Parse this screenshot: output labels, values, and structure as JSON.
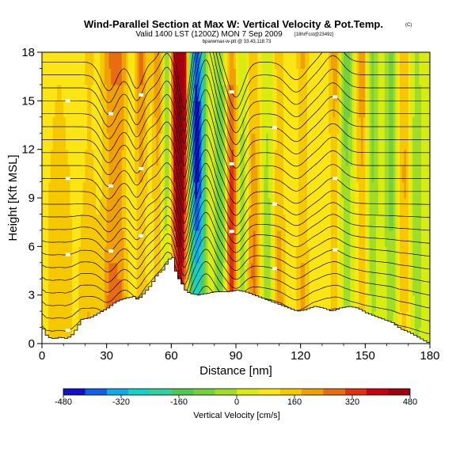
{
  "chart_data": {
    "type": "heatmap",
    "title": "Wind-Parallel Section at Max W: Vertical Velocity & Pot.Temp.",
    "title_mark": "(C)",
    "subtitle": "Valid 1400 LST (1200Z) MON 7 Sep 2009",
    "subtitle_note": "[18hrFcst@2349z]",
    "info_line": "bparwmax-w-ptt @ 33.43,118.73",
    "xlabel": "Distance [nm]",
    "ylabel": "Height [Kft MSL]",
    "xlim": [
      0,
      180
    ],
    "ylim": [
      0,
      18
    ],
    "xticks": [
      "0",
      "30",
      "60",
      "90",
      "120",
      "150",
      "180"
    ],
    "yticks": [
      "0",
      "3",
      "6",
      "9",
      "12",
      "15",
      "18"
    ],
    "colorbar": {
      "title": "Vertical Velocity [cm/s]",
      "range": [
        -480,
        480
      ],
      "tick_labels": [
        "-480",
        "-320",
        "-160",
        "0",
        "160",
        "320",
        "480"
      ],
      "colors": [
        "#1010c8",
        "#1060e6",
        "#10aae6",
        "#14d2c8",
        "#30d2a0",
        "#50c850",
        "#74d03c",
        "#a0dc28",
        "#d8ec10",
        "#fbe514",
        "#f5c800",
        "#f0a000",
        "#e86c10",
        "#e03010",
        "#c80010",
        "#a00010"
      ]
    },
    "terrain_nm_kft": [
      [
        0,
        0.9
      ],
      [
        2,
        0.4
      ],
      [
        5,
        0.3
      ],
      [
        8,
        0.4
      ],
      [
        11,
        0.3
      ],
      [
        14,
        0.6
      ],
      [
        18,
        1.5
      ],
      [
        22,
        1.6
      ],
      [
        26,
        1.9
      ],
      [
        30,
        2.2
      ],
      [
        34,
        2.6
      ],
      [
        38,
        2.8
      ],
      [
        42,
        2.9
      ],
      [
        44,
        2.7
      ],
      [
        46,
        3.0
      ],
      [
        48,
        3.3
      ],
      [
        50,
        3.6
      ],
      [
        53,
        4.3
      ],
      [
        56,
        4.6
      ],
      [
        58,
        5.2
      ],
      [
        60,
        5.3
      ],
      [
        62,
        4.2
      ],
      [
        64,
        3.8
      ],
      [
        66,
        3.3
      ],
      [
        68,
        3.1
      ],
      [
        72,
        3.0
      ],
      [
        76,
        3.1
      ],
      [
        80,
        3.2
      ],
      [
        86,
        3.2
      ],
      [
        90,
        3.3
      ],
      [
        94,
        3.2
      ],
      [
        98,
        3.0
      ],
      [
        102,
        2.8
      ],
      [
        106,
        2.6
      ],
      [
        110,
        2.4
      ],
      [
        114,
        2.2
      ],
      [
        118,
        2.0
      ],
      [
        122,
        2.1
      ],
      [
        126,
        2.3
      ],
      [
        130,
        2.2
      ],
      [
        134,
        2.0
      ],
      [
        138,
        2.2
      ],
      [
        142,
        2.3
      ],
      [
        146,
        2.2
      ],
      [
        150,
        1.9
      ],
      [
        154,
        1.7
      ],
      [
        158,
        1.5
      ],
      [
        162,
        1.3
      ],
      [
        166,
        0.9
      ],
      [
        170,
        0.7
      ],
      [
        174,
        0.4
      ],
      [
        178,
        0.1
      ],
      [
        180,
        0.0
      ]
    ],
    "updraft_bands": [
      {
        "x_nm": 8,
        "w_cms": 110,
        "width_nm": 7
      },
      {
        "x_nm": 22,
        "w_cms": 120,
        "width_nm": 5
      },
      {
        "x_nm": 32,
        "w_cms": 250,
        "width_nm": 4
      },
      {
        "x_nm": 37,
        "w_cms": 190,
        "width_nm": 3
      },
      {
        "x_nm": 46,
        "w_cms": 210,
        "width_nm": 3
      },
      {
        "x_nm": 54,
        "w_cms": 170,
        "width_nm": 3
      },
      {
        "x_nm": 62,
        "w_cms": 330,
        "width_nm": 2.5
      },
      {
        "x_nm": 65,
        "w_cms": 460,
        "width_nm": 2.5
      },
      {
        "x_nm": 88,
        "w_cms": 300,
        "width_nm": 3
      },
      {
        "x_nm": 98,
        "w_cms": 200,
        "width_nm": 4
      },
      {
        "x_nm": 110,
        "w_cms": 160,
        "width_nm": 3
      },
      {
        "x_nm": 121,
        "w_cms": 180,
        "width_nm": 3
      },
      {
        "x_nm": 136,
        "w_cms": 170,
        "width_nm": 3
      },
      {
        "x_nm": 149,
        "w_cms": 170,
        "width_nm": 3
      },
      {
        "x_nm": 168,
        "w_cms": 130,
        "width_nm": 3
      }
    ],
    "downdraft_bands": [
      {
        "x_nm": 58,
        "w_cms": -160,
        "width_nm": 2.5
      },
      {
        "x_nm": 71,
        "w_cms": -420,
        "width_nm": 2.5
      },
      {
        "x_nm": 74,
        "w_cms": -300,
        "width_nm": 2.5
      },
      {
        "x_nm": 83,
        "w_cms": -190,
        "width_nm": 3
      },
      {
        "x_nm": 93,
        "w_cms": -150,
        "width_nm": 3
      },
      {
        "x_nm": 104,
        "w_cms": -130,
        "width_nm": 3
      },
      {
        "x_nm": 141,
        "w_cms": -180,
        "width_nm": 3
      },
      {
        "x_nm": 153,
        "w_cms": -160,
        "width_nm": 3
      },
      {
        "x_nm": 162,
        "w_cms": -150,
        "width_nm": 3
      },
      {
        "x_nm": 174,
        "w_cms": -110,
        "width_nm": 3
      }
    ],
    "isentrope_waves": [
      {
        "x_nm": 31,
        "amp_kft": -1.3,
        "width_nm": 5
      },
      {
        "x_nm": 44,
        "amp_kft": -1.2,
        "width_nm": 4
      },
      {
        "x_nm": 58,
        "amp_kft": 1.0,
        "width_nm": 4
      },
      {
        "x_nm": 66,
        "amp_kft": -2.2,
        "width_nm": 3
      },
      {
        "x_nm": 76,
        "amp_kft": 2.8,
        "width_nm": 5
      },
      {
        "x_nm": 90,
        "amp_kft": -1.6,
        "width_nm": 5
      },
      {
        "x_nm": 118,
        "amp_kft": -0.8,
        "width_nm": 6
      },
      {
        "x_nm": 135,
        "amp_kft": 0.9,
        "width_nm": 6
      }
    ],
    "isentrope_bases_kft": [
      0.6,
      1.4,
      2.2,
      3.0,
      3.8,
      4.6,
      5.4,
      6.2,
      7.0,
      7.8,
      8.6,
      9.4,
      10.2,
      11.0,
      11.8,
      12.6,
      13.4,
      14.2,
      15.0,
      15.8,
      16.6,
      17.4
    ]
  }
}
